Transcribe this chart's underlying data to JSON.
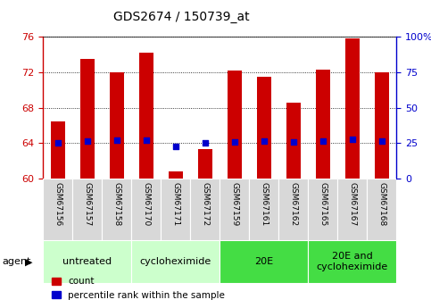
{
  "title": "GDS2674 / 150739_at",
  "samples": [
    "GSM67156",
    "GSM67157",
    "GSM67158",
    "GSM67170",
    "GSM67171",
    "GSM67172",
    "GSM67159",
    "GSM67161",
    "GSM67162",
    "GSM67165",
    "GSM67167",
    "GSM67168"
  ],
  "counts": [
    66.5,
    73.5,
    72.0,
    74.2,
    60.8,
    63.3,
    72.2,
    71.5,
    68.6,
    72.3,
    75.8,
    72.0
  ],
  "percentile_ranks": [
    25.0,
    26.5,
    27.0,
    27.0,
    22.5,
    25.0,
    26.0,
    26.5,
    26.0,
    26.5,
    27.5,
    26.5
  ],
  "ylim_left": [
    60,
    76
  ],
  "ylim_right": [
    0,
    100
  ],
  "yticks_left": [
    60,
    64,
    68,
    72,
    76
  ],
  "yticks_right": [
    0,
    25,
    50,
    75,
    100
  ],
  "ytick_labels_right": [
    "0",
    "25",
    "50",
    "75",
    "100%"
  ],
  "bar_color": "#cc0000",
  "dot_color": "#0000cc",
  "bar_bottom": 60,
  "groups": [
    {
      "label": "untreated",
      "start": 0,
      "end": 3,
      "color": "#ccffcc"
    },
    {
      "label": "cycloheximide",
      "start": 3,
      "end": 6,
      "color": "#ccffcc"
    },
    {
      "label": "20E",
      "start": 6,
      "end": 9,
      "color": "#44dd44"
    },
    {
      "label": "20E and\ncycloheximide",
      "start": 9,
      "end": 12,
      "color": "#44dd44"
    }
  ],
  "agent_label": "agent",
  "legend_count_label": "count",
  "legend_pct_label": "percentile rank within the sample",
  "title_fontsize": 10,
  "axis_color_left": "#cc0000",
  "axis_color_right": "#0000cc",
  "tick_label_fontsize": 8,
  "sample_fontsize": 6.5,
  "group_fontsize": 8,
  "legend_fontsize": 7.5
}
